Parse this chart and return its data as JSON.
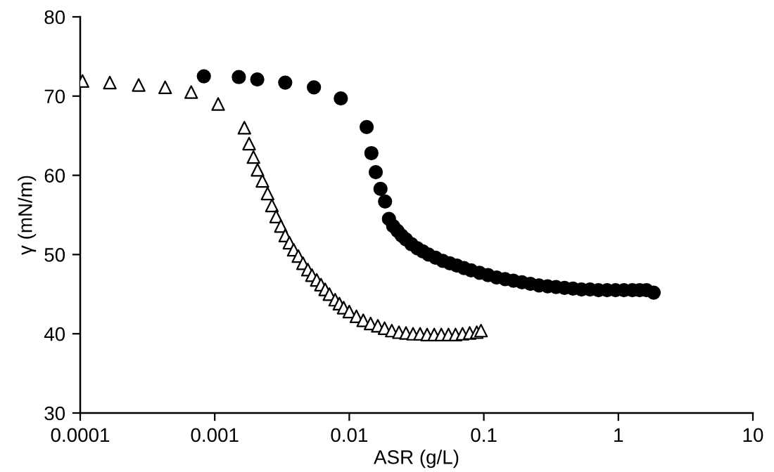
{
  "chart_data": {
    "type": "scatter",
    "xlabel": "ASR (g/L)",
    "ylabel": "γ (mN/m)",
    "log": "x",
    "xlim": [
      0.0001,
      10
    ],
    "xticks": [
      {
        "value": 0.0001,
        "label": "0.0001"
      },
      {
        "value": 0.001,
        "label": "0.001"
      },
      {
        "value": 0.01,
        "label": "0.01"
      },
      {
        "value": 0.1,
        "label": "0.1"
      },
      {
        "value": 1,
        "label": "1"
      },
      {
        "value": 10,
        "label": "10"
      }
    ],
    "ylim": [
      30,
      80
    ],
    "yticks": [
      30,
      40,
      50,
      60,
      70,
      80
    ],
    "grid": false,
    "legend": false,
    "series": [
      {
        "color": "#000000",
        "marker": "circle",
        "x": [
          0.00083,
          0.00151,
          0.00207,
          0.00334,
          0.00546,
          0.00865,
          0.01346,
          0.0146,
          0.01573,
          0.01706,
          0.01845,
          0.01972,
          0.0212,
          0.0228,
          0.0245,
          0.0264,
          0.029,
          0.032,
          0.0352,
          0.0388,
          0.0438,
          0.0495,
          0.0559,
          0.0631,
          0.0712,
          0.0804,
          0.0929,
          0.1076,
          0.1245,
          0.144,
          0.166,
          0.192,
          0.222,
          0.257,
          0.298,
          0.344,
          0.398,
          0.46,
          0.532,
          0.616,
          0.712,
          0.824,
          0.953,
          1.1,
          1.27,
          1.44,
          1.62,
          1.83
        ],
        "values": [
          72.5,
          72.4,
          72.1,
          71.7,
          71.1,
          69.7,
          66.1,
          62.8,
          60.4,
          58.3,
          56.7,
          54.5,
          53.6,
          53.0,
          52.4,
          51.9,
          51.3,
          50.8,
          50.4,
          50.0,
          49.6,
          49.2,
          48.9,
          48.6,
          48.3,
          48.0,
          47.7,
          47.4,
          47.1,
          46.9,
          46.7,
          46.5,
          46.3,
          46.1,
          46.0,
          45.9,
          45.8,
          45.7,
          45.6,
          45.6,
          45.5,
          45.5,
          45.5,
          45.5,
          45.5,
          45.5,
          45.5,
          45.2
        ]
      },
      {
        "color": "#ffffff",
        "marker": "triangle",
        "x": [
          0.000104,
          0.000166,
          0.000272,
          0.000428,
          0.000668,
          0.00106,
          0.00166,
          0.0018,
          0.00194,
          0.00208,
          0.00226,
          0.00247,
          0.00266,
          0.00286,
          0.0031,
          0.00334,
          0.00359,
          0.00386,
          0.00418,
          0.00453,
          0.00492,
          0.00528,
          0.00573,
          0.00616,
          0.00662,
          0.00712,
          0.00785,
          0.00844,
          0.00908,
          0.01,
          0.0113,
          0.0127,
          0.0144,
          0.0163,
          0.0183,
          0.0207,
          0.0234,
          0.0264,
          0.0298,
          0.0336,
          0.0379,
          0.0428,
          0.0483,
          0.0546,
          0.0616,
          0.0695,
          0.0785,
          0.0886,
          0.0953
        ],
        "values": [
          71.9,
          71.7,
          71.4,
          71.1,
          70.5,
          69.0,
          66.0,
          64.0,
          62.3,
          60.7,
          59.3,
          57.7,
          56.2,
          54.8,
          53.6,
          52.4,
          51.5,
          50.6,
          49.8,
          48.9,
          48.1,
          47.4,
          46.8,
          46.2,
          45.6,
          45.0,
          44.3,
          43.8,
          43.3,
          42.8,
          42.2,
          41.7,
          41.3,
          41.0,
          40.7,
          40.4,
          40.2,
          40.1,
          40.0,
          40.0,
          39.9,
          39.9,
          39.9,
          39.9,
          39.9,
          40.0,
          40.1,
          40.2,
          40.4
        ]
      }
    ]
  }
}
